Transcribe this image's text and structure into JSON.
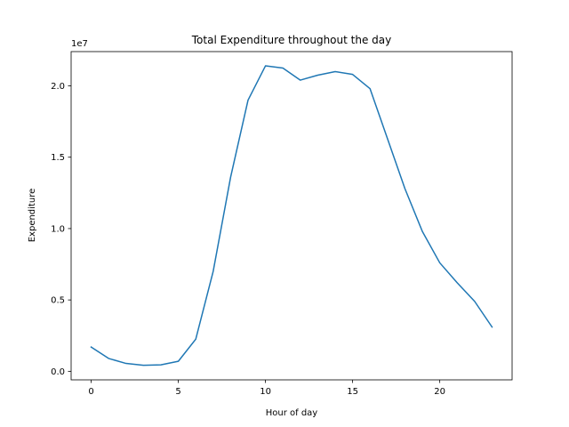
{
  "chart_data": {
    "type": "line",
    "title": "Total Expenditure throughout the day",
    "xlabel": "Hour of day",
    "ylabel": "Expenditure",
    "offset_label": "1e7",
    "xlim": [
      -1.15,
      24.15
    ],
    "ylim": [
      -0.06,
      2.24
    ],
    "xticks": [
      0,
      5,
      10,
      15,
      20
    ],
    "xtick_labels": [
      "0",
      "5",
      "10",
      "15",
      "20"
    ],
    "yticks": [
      0.0,
      0.5,
      1.0,
      1.5,
      2.0
    ],
    "ytick_labels": [
      "0.0",
      "0.5",
      "1.0",
      "1.5",
      "2.0"
    ],
    "grid": false,
    "series": [
      {
        "name": "Total Expenditure",
        "color": "#1f77b4",
        "x": [
          0,
          1,
          2,
          3,
          4,
          5,
          6,
          7,
          8,
          9,
          10,
          11,
          12,
          13,
          14,
          15,
          16,
          17,
          18,
          19,
          20,
          21,
          22,
          23
        ],
        "values": [
          0.17,
          0.09,
          0.055,
          0.042,
          0.045,
          0.07,
          0.225,
          0.7,
          1.36,
          1.9,
          2.14,
          2.125,
          2.04,
          2.075,
          2.1,
          2.08,
          1.98,
          1.63,
          1.28,
          0.98,
          0.76,
          0.62,
          0.49,
          0.31
        ]
      }
    ]
  }
}
